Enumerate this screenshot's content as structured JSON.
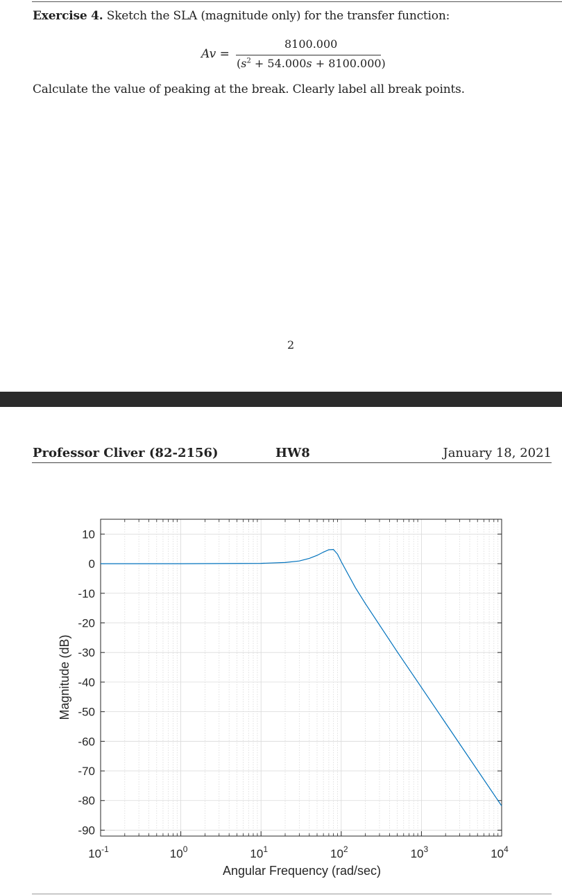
{
  "exercise": {
    "label": "Exercise 4.",
    "prompt": "Sketch the SLA (magnitude only) for the transfer function:",
    "equation_lhs": "Av =",
    "numerator": "8100.000",
    "denominator_prefix": "(",
    "denominator_var": "s",
    "denominator_exp": "2",
    "denominator_mid": " + 54.000",
    "denominator_var2": "s",
    "denominator_tail": " + 8100.000)",
    "instruction": "Calculate the value of peaking at the break. Clearly label all break points."
  },
  "page_number": "2",
  "header": {
    "left": "Professor Cliver (82-2156)",
    "center": "HW8",
    "right": "January 18, 2021"
  },
  "chart_data": {
    "type": "line",
    "title": "",
    "xlabel": "Angular Frequency (rad/sec)",
    "ylabel": "Magnitude (dB)",
    "xscale": "log",
    "xlim": [
      0.1,
      10000
    ],
    "ylim": [
      -92,
      15
    ],
    "grid": true,
    "x_ticks": [
      {
        "base": "10",
        "exp": "-1",
        "value": 0.1
      },
      {
        "base": "10",
        "exp": "0",
        "value": 1
      },
      {
        "base": "10",
        "exp": "1",
        "value": 10
      },
      {
        "base": "10",
        "exp": "2",
        "value": 100
      },
      {
        "base": "10",
        "exp": "3",
        "value": 1000
      },
      {
        "base": "10",
        "exp": "4",
        "value": 10000
      }
    ],
    "y_ticks": [
      "10",
      "0",
      "-10",
      "-20",
      "-30",
      "-40",
      "-50",
      "-60",
      "-70",
      "-80",
      "-90"
    ],
    "series": [
      {
        "color": "#0072bd",
        "x": [
          0.1,
          1,
          10,
          20,
          30,
          40,
          50,
          60,
          70,
          80,
          90,
          100,
          150,
          200,
          500,
          1000,
          10000
        ],
        "y": [
          0,
          0,
          0.1,
          0.4,
          0.9,
          1.8,
          2.8,
          3.9,
          4.7,
          4.8,
          3.2,
          0.7,
          -8.1,
          -13.5,
          -29.8,
          -41.8,
          -81.8
        ]
      }
    ],
    "colors": {
      "line": "#0072bd",
      "grid": "#d9d9d9",
      "axis": "#262626"
    }
  }
}
